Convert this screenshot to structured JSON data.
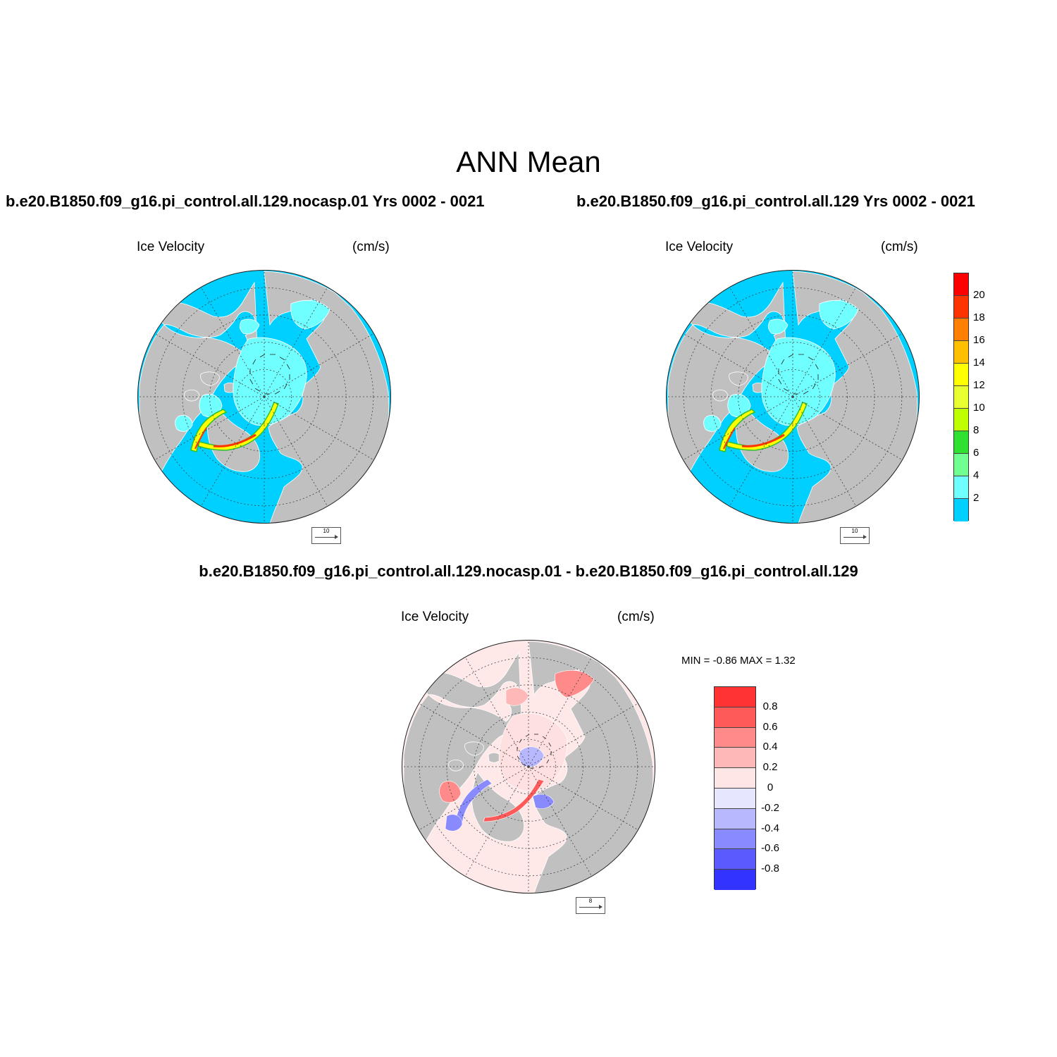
{
  "main_title": "ANN Mean",
  "panels": {
    "top_left": {
      "case_title": "b.e20.B1850.f09_g16.pi_control.all.129.nocasp.01  Yrs 0002 - 0021",
      "variable": "Ice Velocity",
      "units": "(cm/s)",
      "ref_vector": "10"
    },
    "top_right": {
      "case_title": "b.e20.B1850.f09_g16.pi_control.all.129  Yrs 0002 - 0021",
      "variable": "Ice Velocity",
      "units": "(cm/s)",
      "ref_vector": "10"
    },
    "bottom": {
      "case_title": "b.e20.B1850.f09_g16.pi_control.all.129.nocasp.01 - b.e20.B1850.f09_g16.pi_control.all.129",
      "variable": "Ice Velocity",
      "units": "(cm/s)",
      "ref_vector": "8",
      "minmax": "MIN =  -0.86 MAX =   1.32"
    }
  },
  "colorbars": {
    "speed": {
      "labels": [
        "20",
        "18",
        "16",
        "14",
        "12",
        "10",
        "8",
        "6",
        "4",
        "2"
      ],
      "colors": [
        "#ff0000",
        "#ff3300",
        "#ff8000",
        "#ffc000",
        "#ffff00",
        "#e8ff30",
        "#c0ff00",
        "#30e030",
        "#70ff90",
        "#70ffff",
        "#00d0ff"
      ]
    },
    "diff": {
      "labels": [
        "0.8",
        "0.6",
        "0.4",
        "0.2",
        "0",
        "-0.2",
        "-0.4",
        "-0.6",
        "-0.8"
      ],
      "colors": [
        "#ff3333",
        "#ff5a5a",
        "#ff8a8a",
        "#ffb8b8",
        "#ffe6e6",
        "#e6e6ff",
        "#b8b8ff",
        "#8a8aff",
        "#5a5aff",
        "#3333ff"
      ]
    }
  },
  "colors": {
    "ocean_speed": "#00d0ff",
    "ocean_diff": "#ffe8e8",
    "land": "#c0c0c0",
    "ice_fast": "#ff3300",
    "ice_mid": "#ffff00",
    "ice_slow": "#70ffff"
  }
}
